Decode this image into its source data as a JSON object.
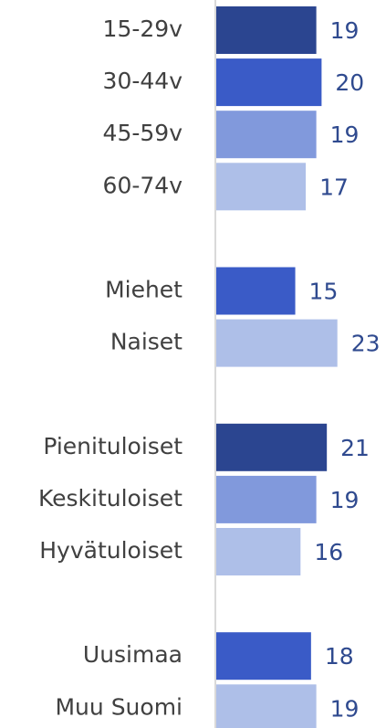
{
  "chart_data": {
    "type": "bar",
    "orientation": "horizontal",
    "categories": [
      "15-29v",
      "30-44v",
      "45-59v",
      "60-74v",
      null,
      "Miehet",
      "Naiset",
      null,
      "Pienituloiset",
      "Keskituloiset",
      "Hyvätuloiset",
      null,
      "Uusimaa",
      "Muu Suomi"
    ],
    "values": [
      19,
      20,
      19,
      17,
      null,
      15,
      23,
      null,
      21,
      19,
      16,
      null,
      18,
      19
    ],
    "colors": [
      "#2b4590",
      "#3a5bc7",
      "#8199dc",
      "#aebfe8",
      null,
      "#3a5bc7",
      "#aebfe8",
      null,
      "#2b4590",
      "#8199dc",
      "#aebfe8",
      null,
      "#3a5bc7",
      "#aebfe8"
    ]
  }
}
